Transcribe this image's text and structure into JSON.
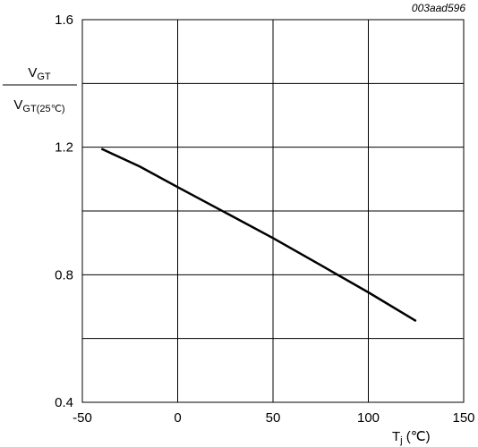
{
  "figure_id": "003aad596",
  "chart_data": {
    "type": "line",
    "title": "",
    "xlabel": {
      "main": "T",
      "sub": "j",
      "unit": " (℃)"
    },
    "ylabel": {
      "numerator_main": "V",
      "numerator_sub": "GT",
      "denominator_main": "V",
      "denominator_sub": "GT(25℃)"
    },
    "xlim": [
      -50,
      150
    ],
    "ylim": [
      0.4,
      1.6
    ],
    "xticks": [
      -50,
      0,
      50,
      100,
      150
    ],
    "xtick_labels": [
      "-50",
      "0",
      "50",
      "100",
      "150"
    ],
    "ygrid": [
      0.4,
      0.6,
      0.8,
      1.0,
      1.2,
      1.4,
      1.6
    ],
    "yticks": [
      0.4,
      0.8,
      1.2,
      1.6
    ],
    "ytick_labels": [
      "0.4",
      "0.8",
      "1.2",
      "1.6"
    ],
    "grid": true,
    "series": [
      {
        "color": "#000000",
        "x": [
          -40,
          -20,
          0,
          25,
          50,
          75,
          100,
          125
        ],
        "y": [
          1.195,
          1.14,
          1.075,
          0.995,
          0.915,
          0.83,
          0.745,
          0.655
        ]
      }
    ]
  }
}
